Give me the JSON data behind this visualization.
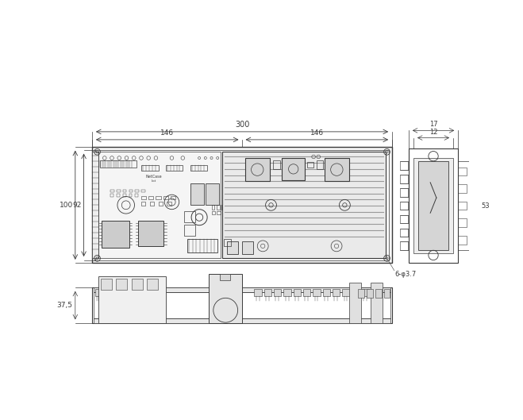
{
  "bg_color": "#ffffff",
  "lc": "#3a3a3a",
  "dc": "#3a3a3a",
  "dim_300": "300",
  "dim_146_left": "146",
  "dim_146_right": "146",
  "dim_100": "100",
  "dim_92": "92",
  "dim_12": "12",
  "dim_17": "17",
  "dim_53": "53",
  "dim_375": "37,5",
  "dim_6hole": "6-φ3.7"
}
